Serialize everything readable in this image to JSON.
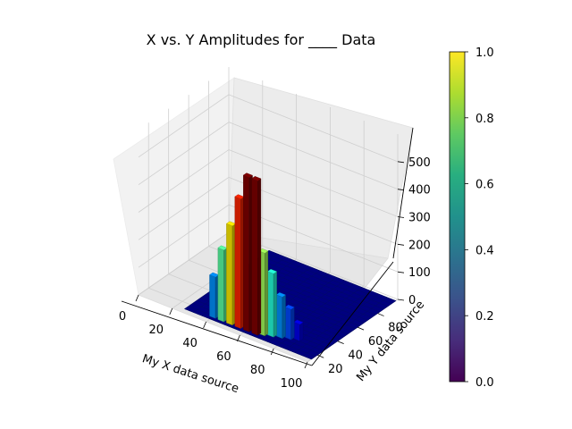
{
  "chart_data": {
    "type": "bar3d",
    "title": "X vs. Y Amplitudes for ____ Data",
    "xlabel": "My X data source",
    "ylabel": "My Y data source",
    "zlabel": "",
    "xlim": [
      0,
      100
    ],
    "ylim": [
      10,
      100
    ],
    "zlim": [
      0,
      600
    ],
    "x_ticks": [
      "0",
      "20",
      "40",
      "60",
      "80",
      "100"
    ],
    "y_ticks": [
      "20",
      "40",
      "60",
      "80"
    ],
    "z_ticks": [
      "0",
      "100",
      "200",
      "300",
      "400",
      "500"
    ],
    "grid": true,
    "colormap": "jet",
    "bars": [
      {
        "x": 40,
        "y": 18,
        "z": 150
      },
      {
        "x": 45,
        "y": 18,
        "z": 260
      },
      {
        "x": 50,
        "y": 18,
        "z": 360
      },
      {
        "x": 55,
        "y": 18,
        "z": 470
      },
      {
        "x": 60,
        "y": 18,
        "z": 560
      },
      {
        "x": 65,
        "y": 18,
        "z": 560
      },
      {
        "x": 68,
        "y": 20,
        "z": 300
      },
      {
        "x": 72,
        "y": 22,
        "z": 230
      },
      {
        "x": 76,
        "y": 24,
        "z": 150
      },
      {
        "x": 80,
        "y": 26,
        "z": 110
      },
      {
        "x": 84,
        "y": 28,
        "z": 60
      }
    ],
    "colorbar": {
      "colormap": "viridis",
      "ticks": [
        "0.0",
        "0.2",
        "0.4",
        "0.6",
        "0.8",
        "1.0"
      ]
    }
  }
}
